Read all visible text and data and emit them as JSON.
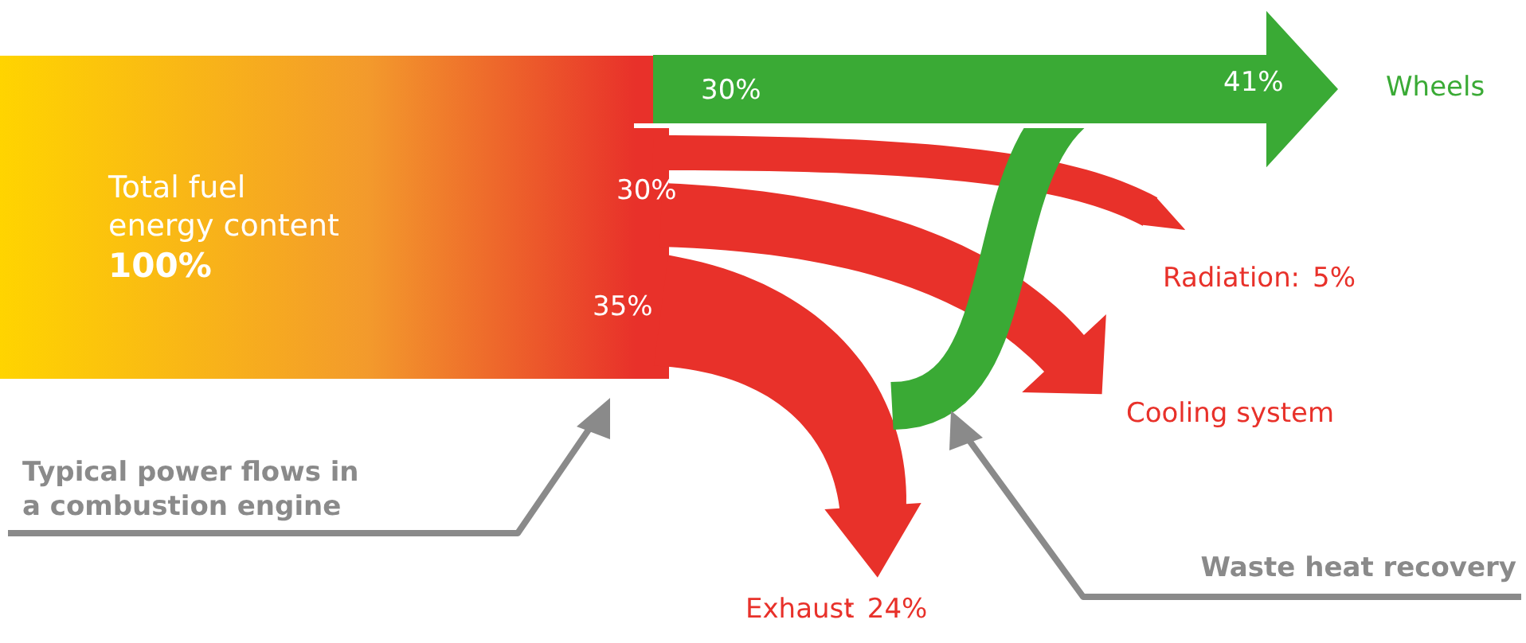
{
  "chart_data": {
    "type": "other",
    "categories": [
      "Wheels",
      "Radiation",
      "Cooling system",
      "Exhaust"
    ],
    "values": [
      41,
      5,
      null,
      24
    ],
    "value_labels": [
      "41%",
      "5%",
      null,
      "24%"
    ],
    "colors": [
      "#3aaa35",
      "#e8312a",
      "#e8312a",
      "#e8312a"
    ],
    "annotations": [
      "Total fuel energy content",
      "100%",
      "30%",
      "30%",
      "35%",
      "Typical power flows in a combustion engine",
      "Waste heat recovery",
      ":",
      ":"
    ]
  }
}
